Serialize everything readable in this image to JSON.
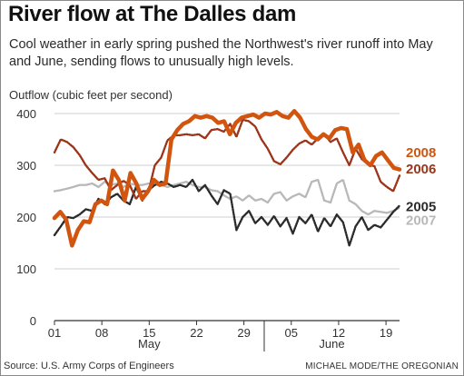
{
  "title": "River flow at The Dalles dam",
  "subtitle": "Cool weather in early spring pushed the Northwest's river runoff into May and June, sending flows to unusually high levels.",
  "source": "Source: U.S. Army Corps of Engineers",
  "credit": "MICHAEL MODE/THE OREGONIAN",
  "colors": {
    "2008": "#d2550f",
    "2006": "#9c3419",
    "2005": "#2b2b2b",
    "2007": "#b8b8b8",
    "grid": "#cfcfcf",
    "axis": "#333333"
  },
  "chart_data": {
    "type": "line",
    "ylabel": "Outflow (cubic feet per second)",
    "ylim": [
      0,
      400
    ],
    "yticks": [
      0,
      100,
      200,
      300,
      400
    ],
    "xlim": [
      0,
      51
    ],
    "xticks": [
      {
        "day": 0,
        "label": "01"
      },
      {
        "day": 7,
        "label": "08"
      },
      {
        "day": 14,
        "label": "15"
      },
      {
        "day": 21,
        "label": "22"
      },
      {
        "day": 28,
        "label": "29"
      },
      {
        "day": 35,
        "label": "05"
      },
      {
        "day": 42,
        "label": "12"
      },
      {
        "day": 49,
        "label": "19"
      }
    ],
    "months": [
      {
        "label": "May",
        "day": 14
      },
      {
        "label": "June",
        "day": 41
      }
    ],
    "grid": "horizontal",
    "series": [
      {
        "name": "2007",
        "key": "2007",
        "style": "dotted",
        "values": [
          250,
          252,
          255,
          258,
          262,
          262,
          265,
          258,
          268,
          262,
          265,
          258,
          265,
          262,
          262,
          265,
          262,
          262,
          258,
          262,
          265,
          268,
          262,
          258,
          258,
          252,
          250,
          242,
          235,
          240,
          232,
          242,
          232,
          235,
          228,
          245,
          248,
          232,
          240,
          245,
          238,
          268,
          272,
          232,
          228,
          265,
          272,
          232,
          225,
          212,
          205,
          212,
          210,
          208,
          212,
          218
        ]
      },
      {
        "name": "2005",
        "key": "2005",
        "style": "dotted",
        "values": [
          165,
          182,
          200,
          198,
          205,
          215,
          212,
          235,
          225,
          238,
          245,
          232,
          225,
          258,
          232,
          252,
          262,
          268,
          265,
          258,
          262,
          258,
          272,
          250,
          262,
          242,
          225,
          252,
          245,
          175,
          200,
          212,
          188,
          200,
          185,
          202,
          182,
          198,
          168,
          200,
          188,
          205,
          172,
          198,
          182,
          205,
          190,
          145,
          182,
          200,
          175,
          185,
          180,
          195,
          210,
          222
        ]
      },
      {
        "name": "2006",
        "key": "2006",
        "style": "dotted",
        "values": [
          325,
          350,
          345,
          335,
          320,
          300,
          285,
          272,
          275,
          252,
          262,
          270,
          262,
          235,
          250,
          250,
          300,
          315,
          348,
          358,
          358,
          360,
          358,
          360,
          352,
          368,
          370,
          365,
          380,
          355,
          388,
          385,
          375,
          350,
          332,
          308,
          302,
          315,
          330,
          342,
          348,
          340,
          352,
          360,
          345,
          352,
          325,
          300,
          332,
          312,
          302,
          298,
          268,
          258,
          250,
          280
        ]
      },
      {
        "name": "2008",
        "key": "2008",
        "style": "solid",
        "values": [
          198,
          210,
          195,
          145,
          175,
          192,
          190,
          225,
          232,
          225,
          290,
          272,
          232,
          285,
          265,
          235,
          250,
          272,
          262,
          265,
          350,
          368,
          380,
          385,
          395,
          392,
          395,
          392,
          382,
          385,
          360,
          382,
          392,
          395,
          398,
          392,
          400,
          398,
          403,
          395,
          392,
          405,
          392,
          370,
          355,
          350,
          360,
          352,
          368,
          372,
          370,
          325,
          340,
          310,
          300,
          318,
          325,
          310,
          295,
          292
        ]
      }
    ]
  },
  "legend": [
    {
      "key": "2008",
      "label": "2008",
      "value": 325
    },
    {
      "key": "2006",
      "label": "2006",
      "value": 293
    },
    {
      "key": "2005",
      "label": "2005",
      "value": 220
    },
    {
      "key": "2007",
      "label": "2007",
      "value": 194
    }
  ]
}
